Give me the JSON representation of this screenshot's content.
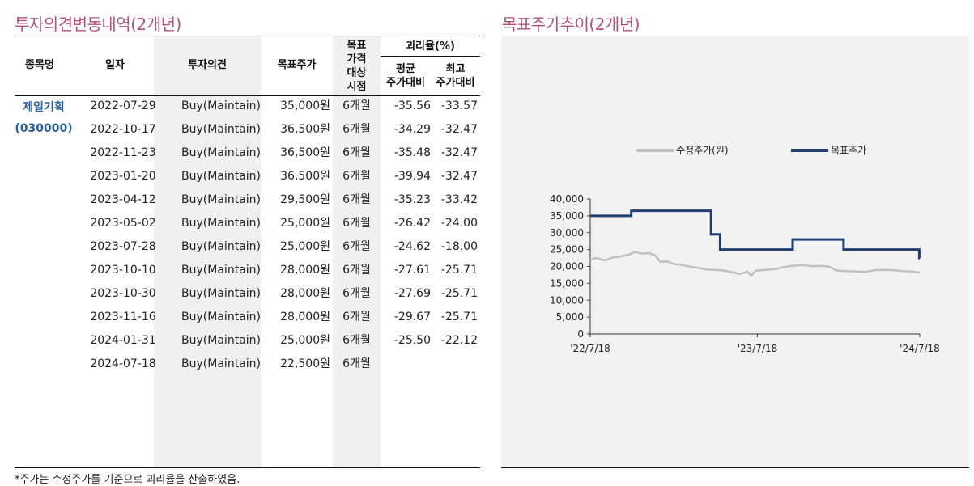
{
  "left": {
    "title": "투자의견변동내역(2개년)",
    "headers": {
      "name": "종목명",
      "date": "일자",
      "opinion": "투자의견",
      "target": "목표주가",
      "period_lines": [
        "목표",
        "가격",
        "대상",
        "시점"
      ],
      "ratio": "괴리율(%)",
      "avg_lines": [
        "평균",
        "주가대비"
      ],
      "max_lines": [
        "최고",
        "주가대비"
      ]
    },
    "company": {
      "name": "제일기획",
      "code": "(030000)"
    },
    "rows": [
      {
        "date": "2022-07-29",
        "opinion": "Buy(Maintain)",
        "target": "35,000원",
        "period": "6개월",
        "avg": "-35.56",
        "max": "-33.57"
      },
      {
        "date": "2022-10-17",
        "opinion": "Buy(Maintain)",
        "target": "36,500원",
        "period": "6개월",
        "avg": "-34.29",
        "max": "-32.47"
      },
      {
        "date": "2022-11-23",
        "opinion": "Buy(Maintain)",
        "target": "36,500원",
        "period": "6개월",
        "avg": "-35.48",
        "max": "-32.47"
      },
      {
        "date": "2023-01-20",
        "opinion": "Buy(Maintain)",
        "target": "36,500원",
        "period": "6개월",
        "avg": "-39.94",
        "max": "-32.47"
      },
      {
        "date": "2023-04-12",
        "opinion": "Buy(Maintain)",
        "target": "29,500원",
        "period": "6개월",
        "avg": "-35.23",
        "max": "-33.42"
      },
      {
        "date": "2023-05-02",
        "opinion": "Buy(Maintain)",
        "target": "25,000원",
        "period": "6개월",
        "avg": "-26.42",
        "max": "-24.00"
      },
      {
        "date": "2023-07-28",
        "opinion": "Buy(Maintain)",
        "target": "25,000원",
        "period": "6개월",
        "avg": "-24.62",
        "max": "-18.00"
      },
      {
        "date": "2023-10-10",
        "opinion": "Buy(Maintain)",
        "target": "28,000원",
        "period": "6개월",
        "avg": "-27.61",
        "max": "-25.71"
      },
      {
        "date": "2023-10-30",
        "opinion": "Buy(Maintain)",
        "target": "28,000원",
        "period": "6개월",
        "avg": "-27.69",
        "max": "-25.71"
      },
      {
        "date": "2023-11-16",
        "opinion": "Buy(Maintain)",
        "target": "28,000원",
        "period": "6개월",
        "avg": "-29.67",
        "max": "-25.71"
      },
      {
        "date": "2024-01-31",
        "opinion": "Buy(Maintain)",
        "target": "25,000원",
        "period": "6개월",
        "avg": "-25.50",
        "max": "-22.12"
      },
      {
        "date": "2024-07-18",
        "opinion": "Buy(Maintain)",
        "target": "22,500원",
        "period": "6개월",
        "avg": "",
        "max": ""
      }
    ],
    "footnote": "*주가는 수정주가를 기준으로 괴리율을 산출하였음."
  },
  "right": {
    "title": "목표주가추이(2개년)"
  },
  "chart_data": {
    "type": "line",
    "x_ticks": [
      "'22/7/18",
      "'23/7/18",
      "'24/7/18"
    ],
    "x_range": [
      "2022-07-18",
      "2024-07-18"
    ],
    "ylim": [
      0,
      40000
    ],
    "y_ticks": [
      "0",
      "5,000",
      "10,000",
      "15,000",
      "20,000",
      "25,000",
      "30,000",
      "35,000",
      "40,000"
    ],
    "y_tick_values": [
      0,
      5000,
      10000,
      15000,
      20000,
      25000,
      30000,
      35000,
      40000
    ],
    "legend_position": "top",
    "colors": {
      "price": "#c0c0c0",
      "target": "#1f3f6e"
    },
    "series": [
      {
        "name": "수정주가(원)",
        "points": [
          [
            "2022-07-18",
            22000
          ],
          [
            "2022-08-01",
            22500
          ],
          [
            "2022-08-20",
            21800
          ],
          [
            "2022-09-05",
            22600
          ],
          [
            "2022-09-25",
            23000
          ],
          [
            "2022-10-10",
            23400
          ],
          [
            "2022-10-25",
            24300
          ],
          [
            "2022-11-10",
            23800
          ],
          [
            "2022-11-25",
            24000
          ],
          [
            "2022-12-10",
            23200
          ],
          [
            "2022-12-20",
            21400
          ],
          [
            "2023-01-05",
            21500
          ],
          [
            "2023-01-20",
            20700
          ],
          [
            "2023-02-05",
            20500
          ],
          [
            "2023-02-25",
            19900
          ],
          [
            "2023-03-15",
            19600
          ],
          [
            "2023-04-01",
            19100
          ],
          [
            "2023-04-20",
            19000
          ],
          [
            "2023-05-10",
            18800
          ],
          [
            "2023-06-01",
            18200
          ],
          [
            "2023-06-15",
            17800
          ],
          [
            "2023-07-01",
            18500
          ],
          [
            "2023-07-10",
            17300
          ],
          [
            "2023-07-20",
            18700
          ],
          [
            "2023-08-10",
            19000
          ],
          [
            "2023-09-01",
            19200
          ],
          [
            "2023-09-20",
            19800
          ],
          [
            "2023-10-10",
            20200
          ],
          [
            "2023-10-30",
            20400
          ],
          [
            "2023-11-20",
            20100
          ],
          [
            "2023-12-10",
            20200
          ],
          [
            "2023-12-31",
            19900
          ],
          [
            "2024-01-15",
            18800
          ],
          [
            "2024-02-05",
            18600
          ],
          [
            "2024-03-01",
            18500
          ],
          [
            "2024-03-20",
            18400
          ],
          [
            "2024-04-10",
            18900
          ],
          [
            "2024-05-01",
            19000
          ],
          [
            "2024-05-20",
            18900
          ],
          [
            "2024-06-10",
            18600
          ],
          [
            "2024-07-01",
            18500
          ],
          [
            "2024-07-18",
            18200
          ]
        ]
      },
      {
        "name": "목표주가",
        "points": [
          [
            "2022-07-18",
            35000
          ],
          [
            "2022-10-17",
            35000
          ],
          [
            "2022-10-17",
            36500
          ],
          [
            "2023-04-12",
            36500
          ],
          [
            "2023-04-12",
            29500
          ],
          [
            "2023-05-02",
            29500
          ],
          [
            "2023-05-02",
            25000
          ],
          [
            "2023-10-10",
            25000
          ],
          [
            "2023-10-10",
            28000
          ],
          [
            "2024-01-31",
            28000
          ],
          [
            "2024-01-31",
            25000
          ],
          [
            "2024-07-17",
            25000
          ],
          [
            "2024-07-17",
            22500
          ],
          [
            "2024-07-18",
            22500
          ]
        ]
      }
    ]
  }
}
